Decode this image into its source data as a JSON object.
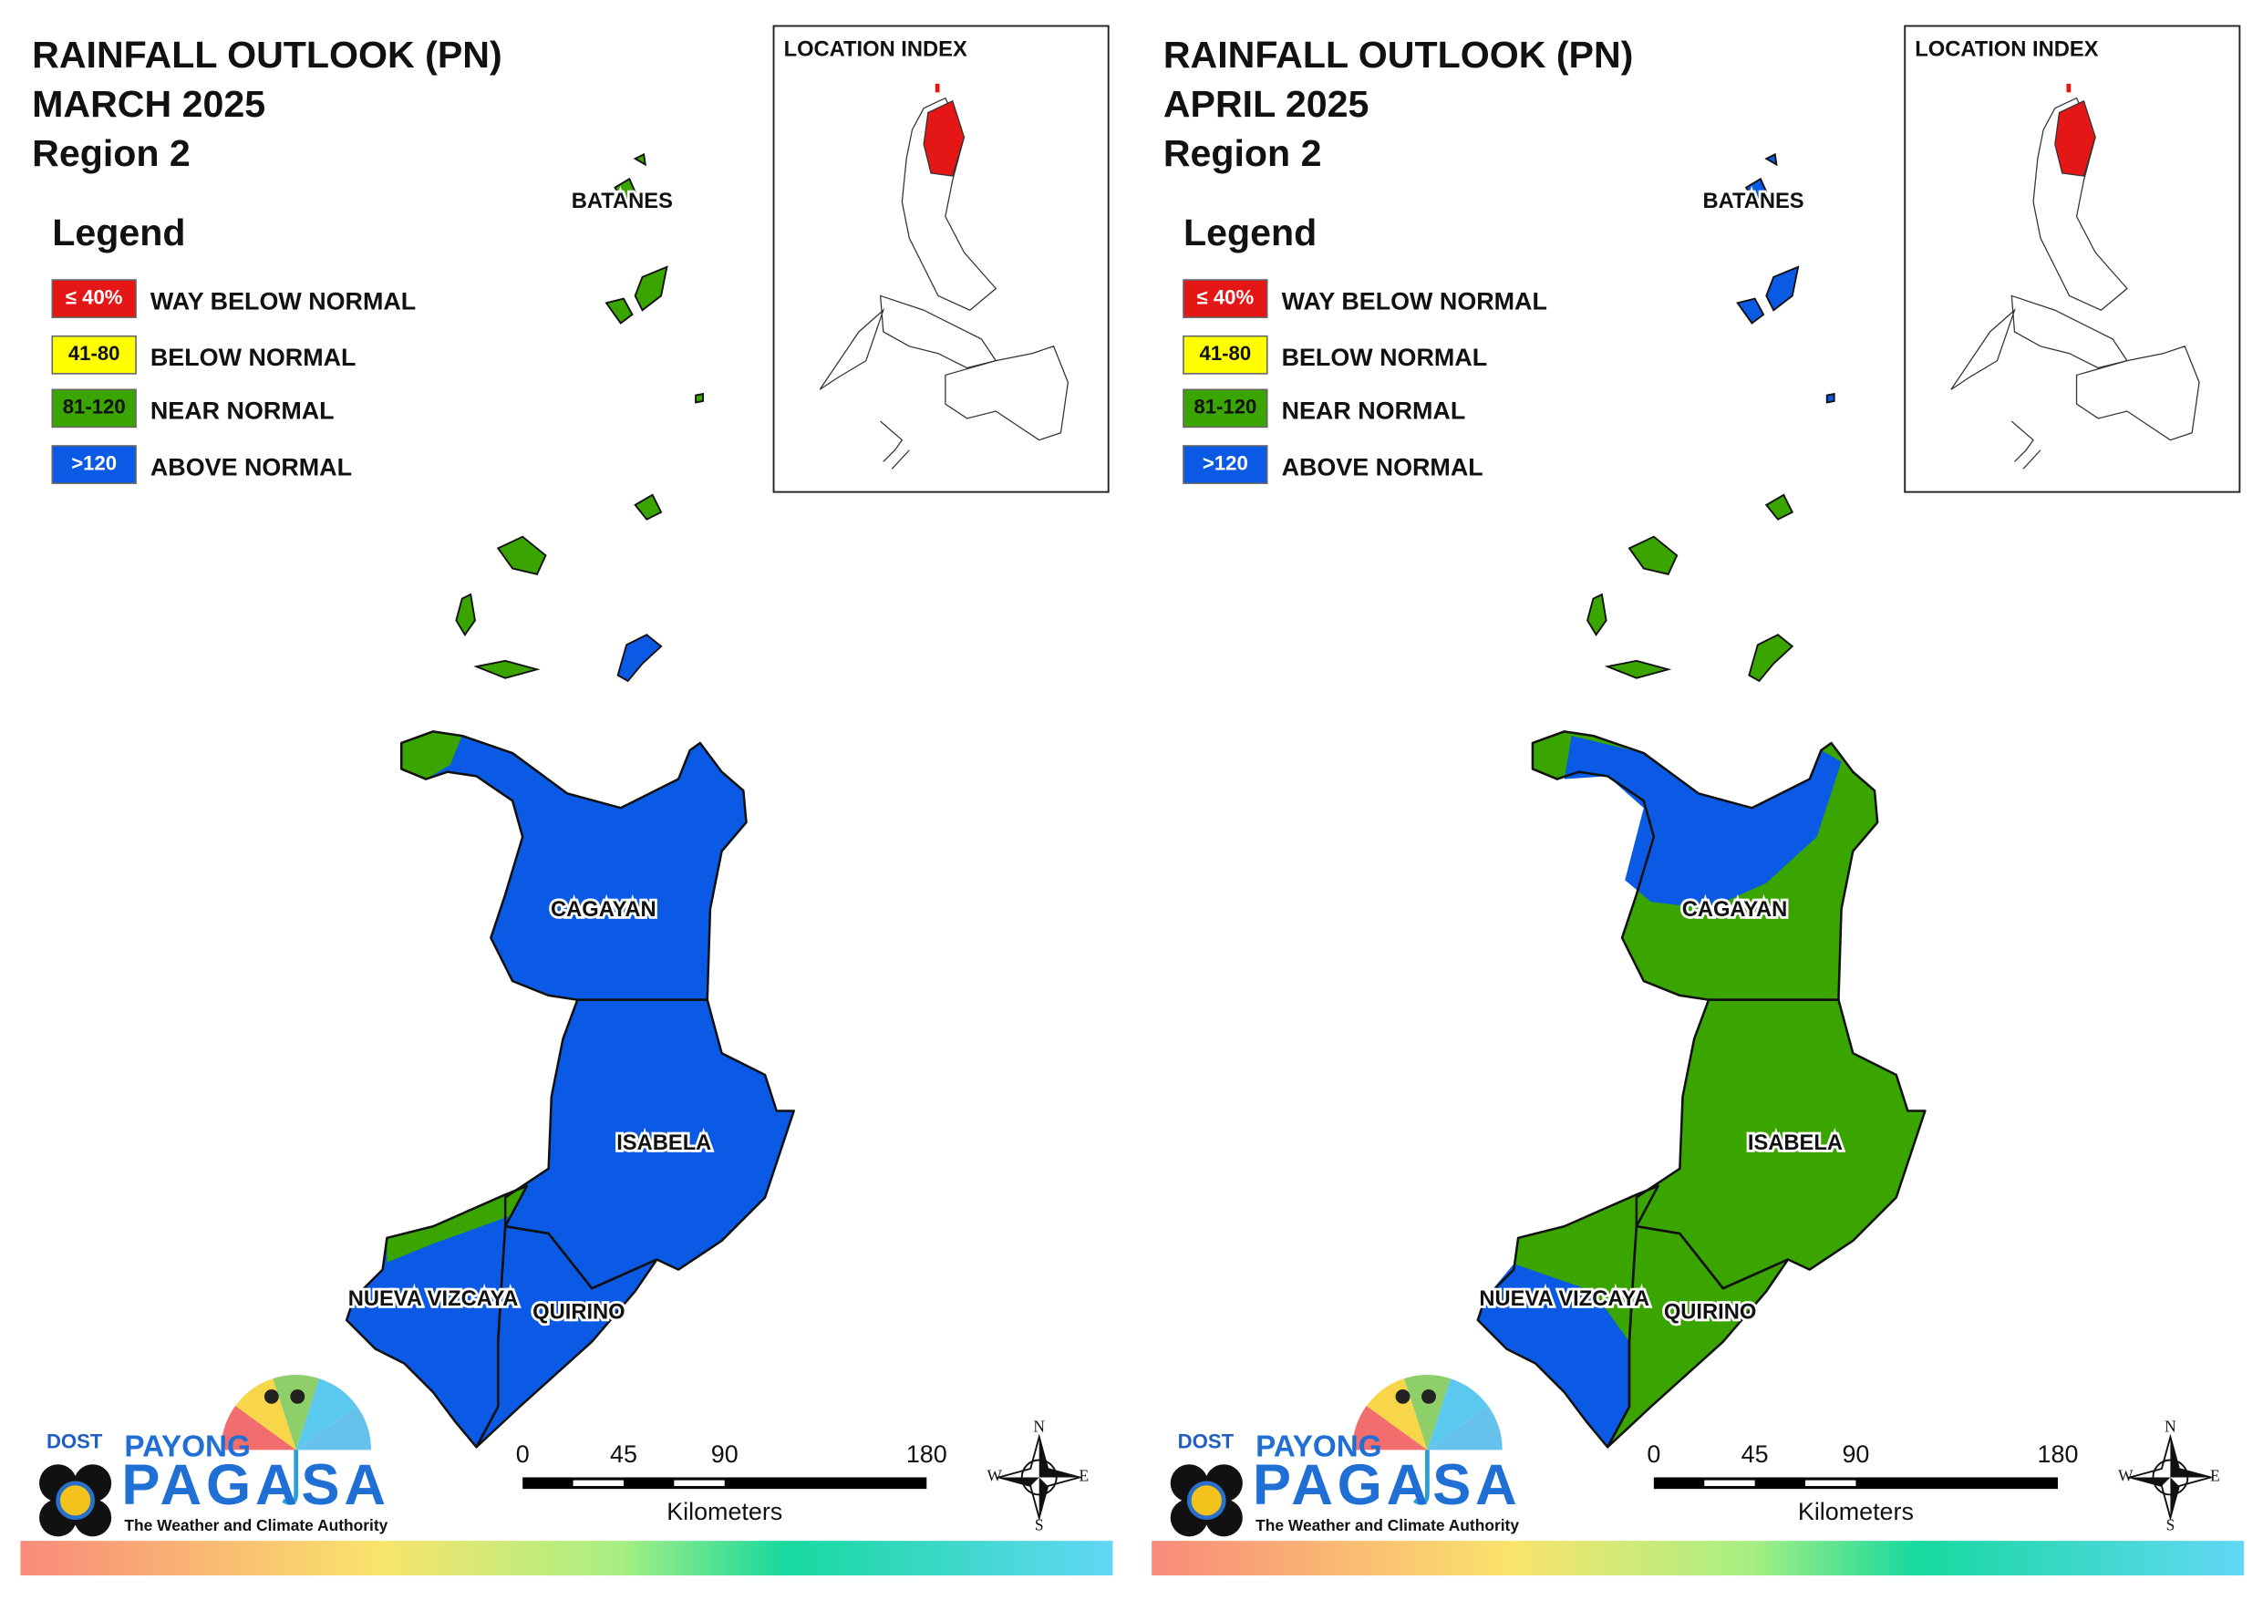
{
  "panels": [
    {
      "title": [
        "RAINFALL OUTLOOK (PN)",
        "MARCH 2025",
        "Region 2"
      ],
      "legend_title": "Legend",
      "legend": [
        {
          "range": "≤ 40%",
          "label": "WAY BELOW NORMAL",
          "color": "#e51616"
        },
        {
          "range": "41-80",
          "label": "BELOW NORMAL",
          "color": "#ffff00"
        },
        {
          "range": "81-120",
          "label": "NEAR NORMAL",
          "color": "#3ba500"
        },
        {
          "range": ">120",
          "label": "ABOVE NORMAL",
          "color": "#0a5ae6"
        }
      ],
      "location_index": "LOCATION INDEX",
      "provinces": [
        {
          "name": "BATANES",
          "color": "#3ba500"
        },
        {
          "name": "CAGAYAN",
          "color": "#0a5ae6",
          "partial_color": "#3ba500"
        },
        {
          "name": "ISABELA",
          "color": "#0a5ae6"
        },
        {
          "name": "NUEVA VIZCAYA",
          "color": "#0a5ae6",
          "partial_color": "#3ba500"
        },
        {
          "name": "QUIRINO",
          "color": "#0a5ae6"
        }
      ],
      "scale_bar": {
        "ticks": [
          0,
          45,
          90,
          180
        ],
        "unit": "Kilometers"
      },
      "compass": [
        "N",
        "E",
        "S",
        "W"
      ],
      "logo": {
        "agency": "DOST",
        "brand_top": "PAYONG",
        "brand": "PAGASA",
        "tagline": "The Weather and Climate Authority"
      }
    },
    {
      "title": [
        "RAINFALL OUTLOOK (PN)",
        "APRIL 2025",
        "Region 2"
      ],
      "legend_title": "Legend",
      "legend": [
        {
          "range": "≤ 40%",
          "label": "WAY BELOW NORMAL",
          "color": "#e51616"
        },
        {
          "range": "41-80",
          "label": "BELOW NORMAL",
          "color": "#ffff00"
        },
        {
          "range": "81-120",
          "label": "NEAR NORMAL",
          "color": "#3ba500"
        },
        {
          "range": ">120",
          "label": "ABOVE NORMAL",
          "color": "#0a5ae6"
        }
      ],
      "location_index": "LOCATION INDEX",
      "provinces": [
        {
          "name": "BATANES",
          "color": "#0a5ae6"
        },
        {
          "name": "CAGAYAN",
          "color": "#3ba500",
          "partial_color": "#0a5ae6"
        },
        {
          "name": "ISABELA",
          "color": "#3ba500"
        },
        {
          "name": "NUEVA VIZCAYA",
          "color": "#3ba500",
          "partial_color": "#0a5ae6"
        },
        {
          "name": "QUIRINO",
          "color": "#3ba500"
        }
      ],
      "scale_bar": {
        "ticks": [
          0,
          45,
          90,
          180
        ],
        "unit": "Kilometers"
      },
      "compass": [
        "N",
        "E",
        "S",
        "W"
      ],
      "logo": {
        "agency": "DOST",
        "brand_top": "PAYONG",
        "brand": "PAGASA",
        "tagline": "The Weather and Climate Authority"
      }
    }
  ]
}
